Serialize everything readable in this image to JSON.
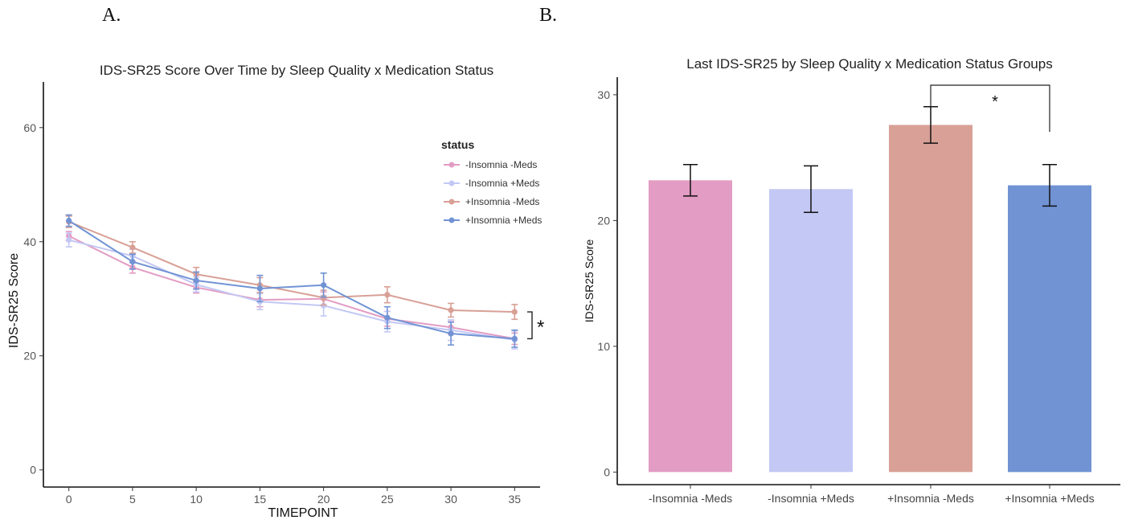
{
  "panels": {
    "a_label": "A.",
    "b_label": "B."
  },
  "colors": {
    "-Insomnia -Meds": "#e39cc3",
    "-Insomnia +Meds": "#c3c8f4",
    "+Insomnia -Meds": "#d8a096",
    "+Insomnia +Meds": "#7193d4"
  },
  "chart_data": [
    {
      "type": "line",
      "title": "IDS-SR25 Score Over Time by Sleep Quality x Medication Status",
      "xlabel": "TIMEPOINT",
      "ylabel": "IDS-SR25 Score",
      "x": [
        0,
        5,
        10,
        15,
        20,
        25,
        30,
        35
      ],
      "xticks": [
        0,
        5,
        10,
        15,
        20,
        25,
        30,
        35
      ],
      "yticks": [
        0,
        20,
        40,
        60
      ],
      "xlim": [
        -2,
        37
      ],
      "ylim": [
        -3,
        68
      ],
      "grid": false,
      "legend": {
        "title": "status",
        "position": "right"
      },
      "significance_marker": "*",
      "series": [
        {
          "name": "-Insomnia -Meds",
          "values": [
            41.0,
            35.5,
            32.0,
            29.8,
            30.0,
            26.5,
            25.0,
            23.0
          ],
          "error": [
            0.8,
            1.0,
            1.0,
            1.2,
            1.2,
            1.3,
            1.2,
            1.0
          ]
        },
        {
          "name": "-Insomnia +Meds",
          "values": [
            40.3,
            37.5,
            32.5,
            29.5,
            28.8,
            26.0,
            24.5,
            22.8
          ],
          "error": [
            1.2,
            1.2,
            1.3,
            1.4,
            1.8,
            1.8,
            1.8,
            1.6
          ]
        },
        {
          "name": "+Insomnia -Meds",
          "values": [
            43.5,
            39.0,
            34.3,
            32.4,
            30.2,
            30.7,
            28.0,
            27.7
          ],
          "error": [
            1.0,
            1.0,
            1.2,
            1.3,
            1.3,
            1.4,
            1.2,
            1.3
          ]
        },
        {
          "name": "+Insomnia +Meds",
          "values": [
            43.7,
            36.5,
            33.2,
            31.8,
            32.4,
            26.7,
            23.9,
            23.0
          ],
          "error": [
            1.0,
            1.3,
            1.5,
            2.3,
            2.1,
            1.9,
            2.0,
            1.5
          ]
        }
      ]
    },
    {
      "type": "bar",
      "title": "Last IDS-SR25 by Sleep Quality x Medication Status Groups",
      "xlabel": "",
      "ylabel": "IDS-SR25 Score",
      "categories": [
        "-Insomnia -Meds",
        "-Insomnia +Meds",
        "+Insomnia -Meds",
        "+Insomnia +Meds"
      ],
      "values": [
        23.2,
        22.5,
        27.6,
        22.8
      ],
      "error": [
        1.25,
        1.85,
        1.45,
        1.65
      ],
      "yticks": [
        0,
        10,
        20,
        30
      ],
      "ylim": [
        -1,
        31.4
      ],
      "grid": false,
      "significance": {
        "from": "+Insomnia -Meds",
        "to": "+Insomnia +Meds",
        "label": "*"
      }
    }
  ]
}
